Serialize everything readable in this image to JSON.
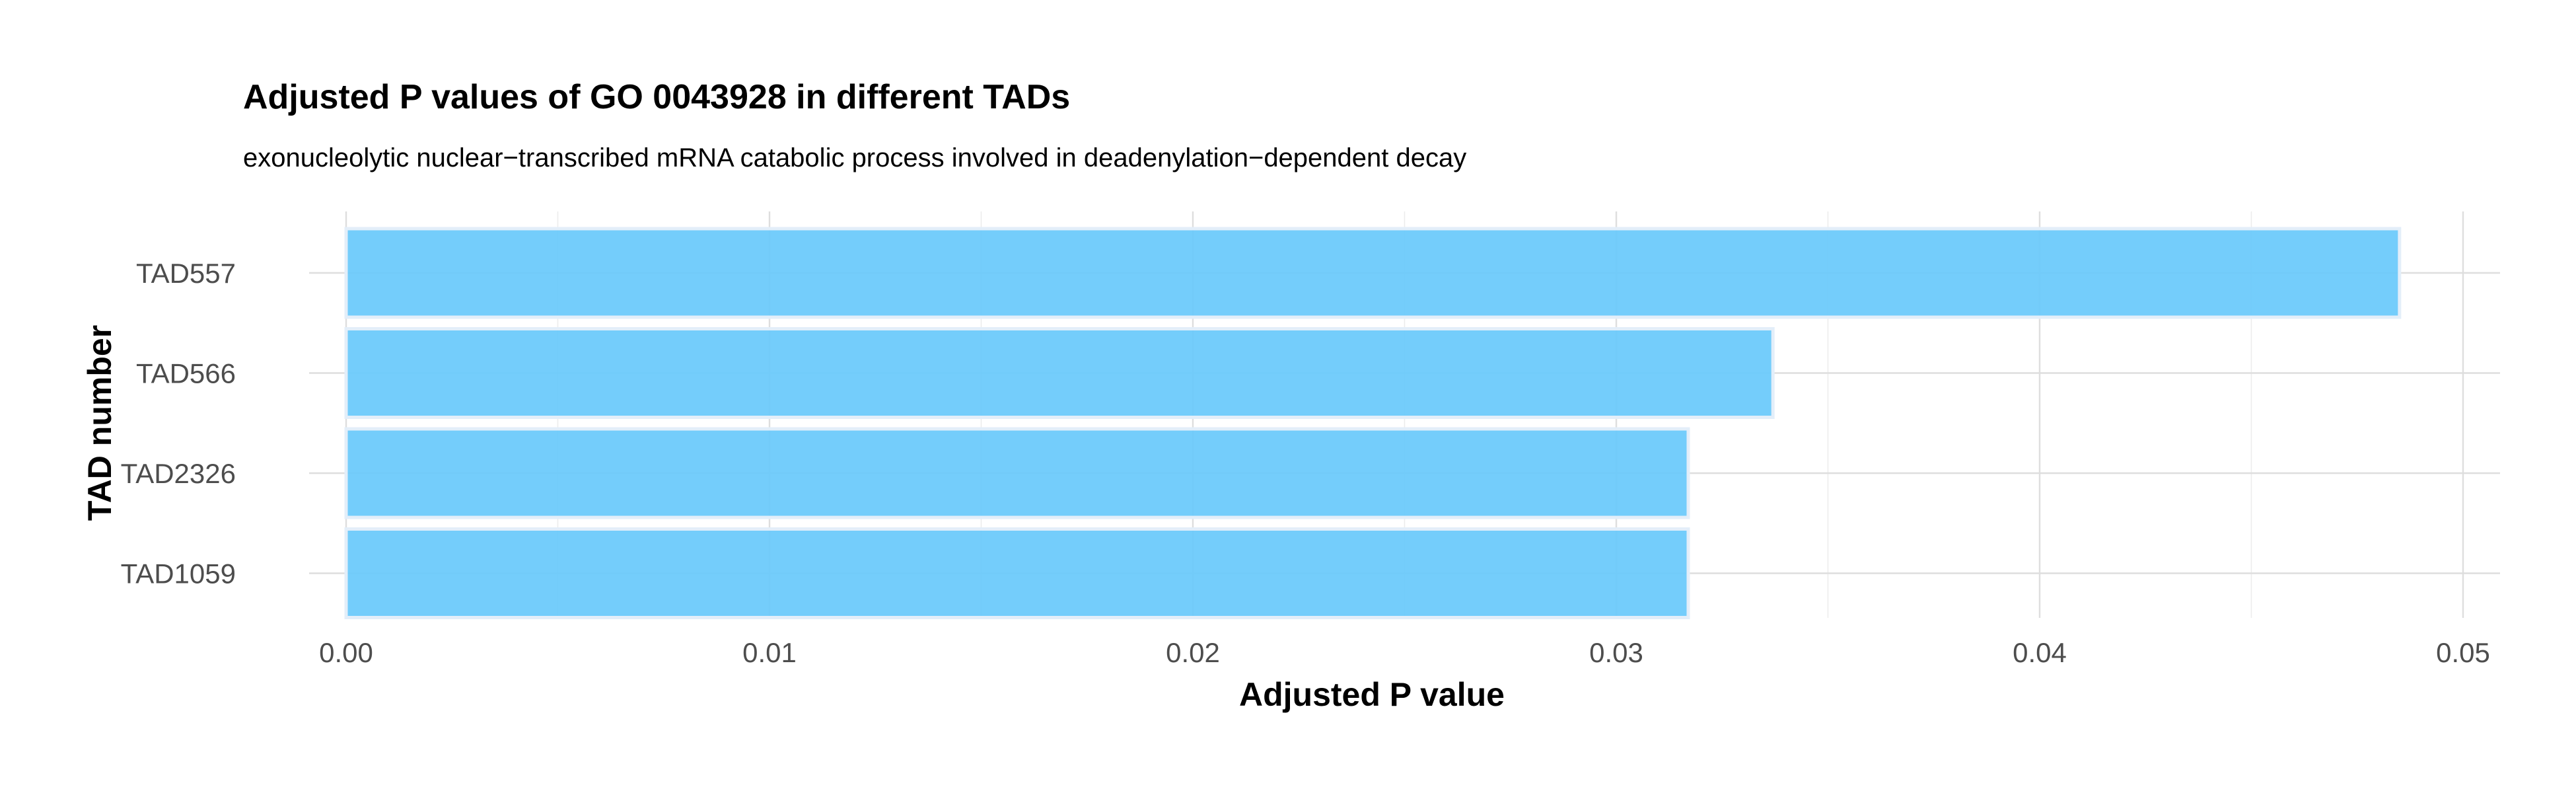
{
  "chart_data": {
    "type": "bar",
    "orientation": "horizontal",
    "title": "Adjusted P values of GO 0043928 in different TADs",
    "subtitle": "exonucleolytic nuclear−transcribed mRNA catabolic process involved in deadenylation−dependent decay",
    "xlabel": "Adjusted P value",
    "ylabel": "TAD number",
    "categories": [
      "TAD557",
      "TAD566",
      "TAD2326",
      "TAD1059"
    ],
    "values": [
      0.0485,
      0.0337,
      0.0317,
      0.0317
    ],
    "xlim": [
      0,
      0.051
    ],
    "xticks": [
      0.0,
      0.01,
      0.02,
      0.03,
      0.04,
      0.05
    ],
    "xtick_labels": [
      "0.00",
      "0.01",
      "0.02",
      "0.03",
      "0.04",
      "0.05"
    ],
    "minor_xticks": [
      0.005,
      0.015,
      0.025,
      0.035,
      0.045
    ],
    "grid": true,
    "legend": "none",
    "colors": {
      "bar_fill": "#68c9fb",
      "bar_outline": "#e3eef9"
    }
  }
}
